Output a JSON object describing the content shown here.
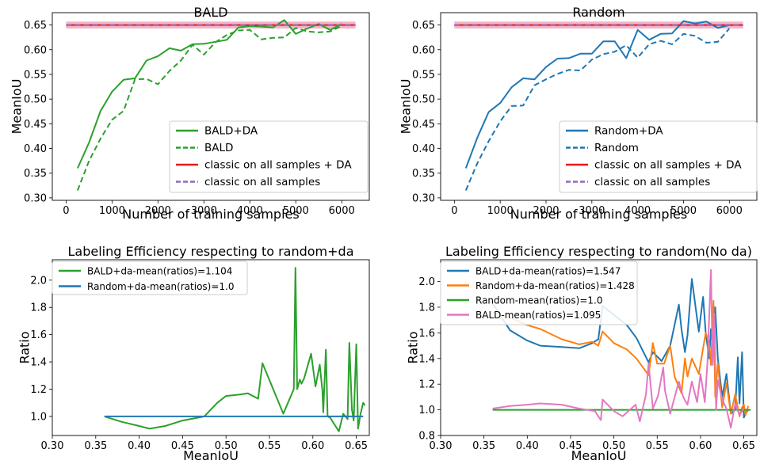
{
  "colors": {
    "bald": "#2ca02c",
    "random": "#1f77b4",
    "random_da": "#ff7f0e",
    "bald_nodas": "#e377c2",
    "classic_da": "#e41a1c",
    "classic": "#9467bd",
    "band": "#f4a6b8"
  },
  "chart_data": [
    {
      "type": "line",
      "title": "BALD",
      "xlabel": "Number of training samples",
      "ylabel": "MeanIoU",
      "xlim": [
        -300,
        6600
      ],
      "ylim": [
        0.295,
        0.675
      ],
      "xticks": [
        0,
        1000,
        2000,
        3000,
        4000,
        5000,
        6000
      ],
      "xtick_labels": [
        "0",
        "1000",
        "2000",
        "3000",
        "4000",
        "5000",
        "6000"
      ],
      "yticks": [
        0.3,
        0.35,
        0.4,
        0.45,
        0.5,
        0.55,
        0.6,
        0.65
      ],
      "ytick_labels": [
        "0.30",
        "0.35",
        "0.40",
        "0.45",
        "0.50",
        "0.55",
        "0.60",
        "0.65"
      ],
      "legend_position": "lower right",
      "legend": [
        "BALD+DA",
        "BALD",
        "classic on all samples + DA",
        "classic on all samples"
      ],
      "band": {
        "x": [
          0,
          6300
        ],
        "low": 0.643,
        "high": 0.657
      },
      "series": [
        {
          "name": "BALD+DA",
          "color": "bald",
          "style": "solid",
          "x": [
            250,
            500,
            750,
            1000,
            1250,
            1500,
            1750,
            2000,
            2250,
            2500,
            2750,
            3000,
            3250,
            3500,
            3750,
            4000,
            4250,
            4500,
            4750,
            5000,
            5250,
            5500,
            5750,
            6000
          ],
          "y": [
            0.36,
            0.412,
            0.476,
            0.515,
            0.539,
            0.542,
            0.578,
            0.587,
            0.603,
            0.598,
            0.611,
            0.612,
            0.616,
            0.62,
            0.645,
            0.648,
            0.647,
            0.645,
            0.66,
            0.632,
            0.643,
            0.652,
            0.64,
            0.652
          ]
        },
        {
          "name": "BALD",
          "color": "bald",
          "style": "dashed",
          "x": [
            250,
            500,
            750,
            1000,
            1250,
            1500,
            1750,
            2000,
            2250,
            2500,
            2750,
            3000,
            3250,
            3500,
            3750,
            4000,
            4250,
            4500,
            4750,
            5000,
            5250,
            5500,
            5750,
            6000
          ],
          "y": [
            0.315,
            0.375,
            0.42,
            0.458,
            0.476,
            0.54,
            0.541,
            0.53,
            0.557,
            0.578,
            0.61,
            0.59,
            0.615,
            0.63,
            0.639,
            0.64,
            0.621,
            0.624,
            0.625,
            0.644,
            0.637,
            0.635,
            0.637,
            0.648
          ]
        },
        {
          "name": "classic on all samples + DA",
          "color": "classic_da",
          "style": "solid",
          "x": [
            0,
            6300
          ],
          "y": [
            0.65,
            0.65
          ]
        },
        {
          "name": "classic on all samples",
          "color": "classic",
          "style": "dashed",
          "x": [
            0,
            6300
          ],
          "y": [
            0.65,
            0.65
          ]
        }
      ]
    },
    {
      "type": "line",
      "title": "Random",
      "xlabel": "Number of training samples",
      "ylabel": "MeanIoU",
      "xlim": [
        -300,
        6600
      ],
      "ylim": [
        0.295,
        0.675
      ],
      "xticks": [
        0,
        1000,
        2000,
        3000,
        4000,
        5000,
        6000
      ],
      "xtick_labels": [
        "0",
        "1000",
        "2000",
        "3000",
        "4000",
        "5000",
        "6000"
      ],
      "yticks": [
        0.3,
        0.35,
        0.4,
        0.45,
        0.5,
        0.55,
        0.6,
        0.65
      ],
      "ytick_labels": [
        "0.30",
        "0.35",
        "0.40",
        "0.45",
        "0.50",
        "0.55",
        "0.60",
        "0.65"
      ],
      "legend_position": "lower right",
      "legend": [
        "Random+DA",
        "Random",
        "classic on all samples + DA",
        "classic on all samples"
      ],
      "band": {
        "x": [
          0,
          6300
        ],
        "low": 0.643,
        "high": 0.657
      },
      "series": [
        {
          "name": "Random+DA",
          "color": "random",
          "style": "solid",
          "x": [
            250,
            500,
            750,
            1000,
            1250,
            1500,
            1750,
            2000,
            2250,
            2500,
            2750,
            3000,
            3250,
            3500,
            3750,
            4000,
            4250,
            4500,
            4750,
            5000,
            5250,
            5500,
            5750,
            6000
          ],
          "y": [
            0.36,
            0.422,
            0.474,
            0.492,
            0.524,
            0.542,
            0.54,
            0.565,
            0.582,
            0.583,
            0.592,
            0.592,
            0.617,
            0.617,
            0.583,
            0.64,
            0.62,
            0.632,
            0.633,
            0.658,
            0.653,
            0.657,
            0.644,
            0.65
          ]
        },
        {
          "name": "Random",
          "color": "random",
          "style": "dashed",
          "x": [
            250,
            500,
            750,
            1000,
            1250,
            1500,
            1750,
            2000,
            2250,
            2500,
            2750,
            3000,
            3250,
            3500,
            3750,
            4000,
            4250,
            4500,
            4750,
            5000,
            5250,
            5500,
            5750,
            6000
          ],
          "y": [
            0.315,
            0.37,
            0.415,
            0.455,
            0.486,
            0.487,
            0.528,
            0.54,
            0.551,
            0.559,
            0.558,
            0.58,
            0.591,
            0.596,
            0.609,
            0.584,
            0.611,
            0.618,
            0.611,
            0.632,
            0.628,
            0.614,
            0.616,
            0.643
          ]
        },
        {
          "name": "classic on all samples + DA",
          "color": "classic_da",
          "style": "solid",
          "x": [
            0,
            6300
          ],
          "y": [
            0.65,
            0.65
          ]
        },
        {
          "name": "classic on all samples",
          "color": "classic",
          "style": "dashed",
          "x": [
            0,
            6300
          ],
          "y": [
            0.65,
            0.65
          ]
        }
      ]
    },
    {
      "type": "line",
      "title": "Labeling Efficiency respecting to random+da",
      "xlabel": "MeanIoU",
      "ylabel": "Ratio",
      "xlim": [
        0.3,
        0.665
      ],
      "ylim": [
        0.86,
        2.15
      ],
      "xticks": [
        0.3,
        0.35,
        0.4,
        0.45,
        0.5,
        0.55,
        0.6,
        0.65
      ],
      "xtick_labels": [
        "0.30",
        "0.35",
        "0.40",
        "0.45",
        "0.50",
        "0.55",
        "0.60",
        "0.65"
      ],
      "yticks": [
        1.0,
        1.2,
        1.4,
        1.6,
        1.8,
        2.0
      ],
      "ytick_labels": [
        "1.0",
        "1.2",
        "1.4",
        "1.6",
        "1.8",
        "2.0"
      ],
      "legend_position": "upper left",
      "legend": [
        "BALD+da-mean(ratios)=1.104",
        "Random+da-mean(ratios)=1.0"
      ],
      "series": [
        {
          "name": "BALD+da-mean(ratios)=1.104",
          "color": "bald",
          "style": "solid",
          "x": [
            0.36,
            0.38,
            0.4,
            0.412,
            0.43,
            0.45,
            0.475,
            0.49,
            0.5,
            0.515,
            0.525,
            0.537,
            0.542,
            0.566,
            0.578,
            0.58,
            0.582,
            0.585,
            0.587,
            0.59,
            0.598,
            0.603,
            0.608,
            0.611,
            0.612,
            0.615,
            0.617,
            0.62,
            0.63,
            0.635,
            0.64,
            0.642,
            0.645,
            0.647,
            0.65,
            0.652,
            0.655,
            0.658,
            0.66
          ],
          "y": [
            1.0,
            0.96,
            0.93,
            0.91,
            0.93,
            0.97,
            1.0,
            1.1,
            1.15,
            1.16,
            1.17,
            1.13,
            1.39,
            1.02,
            1.2,
            2.09,
            1.2,
            1.27,
            1.24,
            1.28,
            1.46,
            1.22,
            1.38,
            1.19,
            1.03,
            1.49,
            1.0,
            0.99,
            0.89,
            1.02,
            0.98,
            1.54,
            1.05,
            0.97,
            1.53,
            0.91,
            1.02,
            1.1,
            1.08
          ]
        },
        {
          "name": "Random+da-mean(ratios)=1.0",
          "color": "random",
          "style": "solid",
          "x": [
            0.36,
            0.658
          ],
          "y": [
            1.0,
            1.0
          ]
        }
      ]
    },
    {
      "type": "line",
      "title": "Labeling Efficiency respecting to random(No da)",
      "xlabel": "MeanIoU",
      "ylabel": "Ratio",
      "xlim": [
        0.3,
        0.665
      ],
      "ylim": [
        0.8,
        2.17
      ],
      "xticks": [
        0.3,
        0.35,
        0.4,
        0.45,
        0.5,
        0.55,
        0.6,
        0.65
      ],
      "xtick_labels": [
        "0.30",
        "0.35",
        "0.40",
        "0.45",
        "0.50",
        "0.55",
        "0.60",
        "0.65"
      ],
      "yticks": [
        0.8,
        1.0,
        1.2,
        1.4,
        1.6,
        1.8,
        2.0
      ],
      "ytick_labels": [
        "0.8",
        "1.0",
        "1.2",
        "1.4",
        "1.6",
        "1.8",
        "2.0"
      ],
      "legend_position": "upper left",
      "legend": [
        "BALD+da-mean(ratios)=1.547",
        "Random+da-mean(ratios)=1.428",
        "Random-mean(ratios)=1.0",
        "BALD-mean(ratios)=1.095"
      ],
      "series": [
        {
          "name": "BALD+da-mean(ratios)=1.547",
          "color": "random",
          "style": "solid",
          "x": [
            0.36,
            0.38,
            0.4,
            0.415,
            0.44,
            0.46,
            0.475,
            0.482,
            0.487,
            0.5,
            0.515,
            0.526,
            0.54,
            0.545,
            0.555,
            0.565,
            0.575,
            0.578,
            0.582,
            0.585,
            0.59,
            0.598,
            0.603,
            0.606,
            0.61,
            0.612,
            0.615,
            0.617,
            0.62,
            0.625,
            0.63,
            0.635,
            0.64,
            0.643,
            0.645,
            0.648,
            0.65,
            0.652,
            0.655
          ],
          "y": [
            1.83,
            1.62,
            1.54,
            1.5,
            1.49,
            1.48,
            1.52,
            1.55,
            1.81,
            1.74,
            1.66,
            1.56,
            1.37,
            1.45,
            1.38,
            1.5,
            1.82,
            1.63,
            1.45,
            1.58,
            2.02,
            1.61,
            1.88,
            1.6,
            1.4,
            1.63,
            1.42,
            1.8,
            1.4,
            1.1,
            1.28,
            0.97,
            1.0,
            1.41,
            1.05,
            1.45,
            0.94,
            0.97,
            1.0
          ]
        },
        {
          "name": "Random+da-mean(ratios)=1.428",
          "color": "random_da",
          "style": "solid",
          "x": [
            0.36,
            0.38,
            0.4,
            0.415,
            0.44,
            0.46,
            0.475,
            0.482,
            0.487,
            0.5,
            0.515,
            0.526,
            0.54,
            0.545,
            0.55,
            0.558,
            0.565,
            0.57,
            0.578,
            0.582,
            0.585,
            0.59,
            0.598,
            0.603,
            0.606,
            0.61,
            0.612,
            0.615,
            0.617,
            0.62,
            0.625,
            0.63,
            0.635,
            0.64,
            0.645,
            0.648,
            0.65,
            0.652,
            0.655
          ],
          "y": [
            1.76,
            1.72,
            1.66,
            1.63,
            1.55,
            1.51,
            1.53,
            1.5,
            1.61,
            1.52,
            1.47,
            1.4,
            1.27,
            1.52,
            1.36,
            1.36,
            1.5,
            1.26,
            1.13,
            1.4,
            1.26,
            1.4,
            1.28,
            1.48,
            1.6,
            1.52,
            1.35,
            1.85,
            1.1,
            1.36,
            1.02,
            1.21,
            0.97,
            1.12,
            0.95,
            1.02,
            1.04,
            0.96,
            1.03
          ]
        },
        {
          "name": "Random-mean(ratios)=1.0",
          "color": "bald",
          "style": "solid",
          "x": [
            0.36,
            0.658
          ],
          "y": [
            1.0,
            1.0
          ]
        },
        {
          "name": "BALD-mean(ratios)=1.095",
          "color": "bald_nodas",
          "style": "solid",
          "x": [
            0.36,
            0.38,
            0.4,
            0.415,
            0.44,
            0.46,
            0.478,
            0.485,
            0.487,
            0.5,
            0.51,
            0.525,
            0.53,
            0.537,
            0.54,
            0.545,
            0.551,
            0.557,
            0.559,
            0.565,
            0.575,
            0.58,
            0.585,
            0.59,
            0.596,
            0.6,
            0.605,
            0.608,
            0.612,
            0.614,
            0.616,
            0.618,
            0.62,
            0.625,
            0.63,
            0.635,
            0.64,
            0.645,
            0.65
          ],
          "y": [
            1.01,
            1.03,
            1.04,
            1.05,
            1.04,
            1.01,
            0.99,
            0.92,
            1.08,
            0.99,
            0.95,
            1.04,
            0.91,
            1.12,
            1.36,
            1.01,
            1.11,
            1.33,
            1.15,
            0.97,
            1.22,
            1.1,
            1.04,
            1.22,
            1.06,
            1.28,
            1.06,
            1.37,
            2.09,
            1.35,
            1.75,
            1.0,
            1.23,
            1.08,
            1.01,
            0.86,
            1.05,
            0.96,
            1.01
          ]
        }
      ]
    }
  ]
}
